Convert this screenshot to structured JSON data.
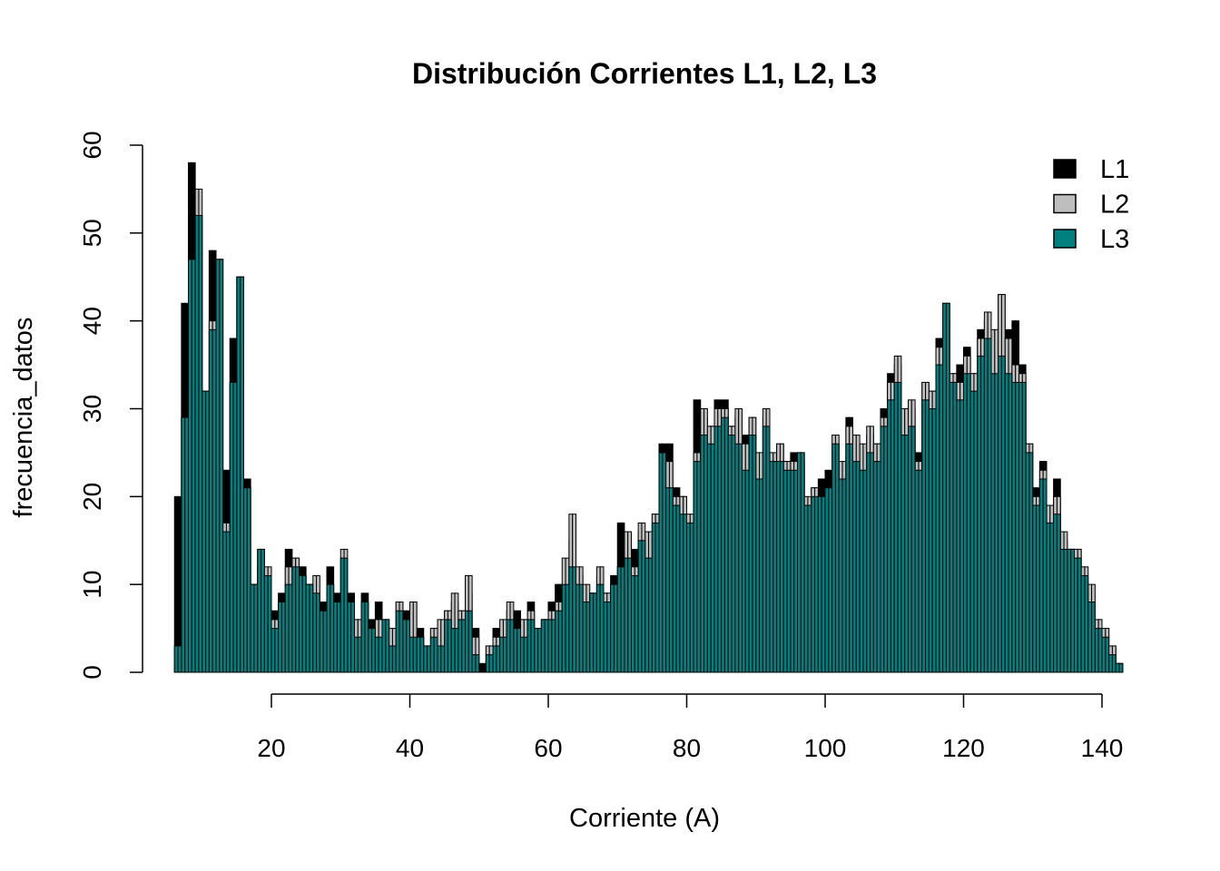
{
  "chart_data": {
    "type": "bar",
    "subtype": "overlaid-histogram",
    "title": "Distribución Corrientes L1, L2, L3",
    "xlabel": "Corriente (A)",
    "ylabel": "frecuencia_datos",
    "xlim": [
      6,
      143
    ],
    "ylim": [
      0,
      60
    ],
    "x_ticks": [
      "20",
      "40",
      "60",
      "80",
      "100",
      "120",
      "140"
    ],
    "x_tick_values": [
      20,
      40,
      60,
      80,
      100,
      120,
      140
    ],
    "y_ticks": [
      "0",
      "10",
      "20",
      "30",
      "40",
      "50",
      "60"
    ],
    "y_tick_values": [
      0,
      10,
      20,
      30,
      40,
      50,
      60
    ],
    "grid": false,
    "legend_position": "top-right",
    "bin_start": 6,
    "bin_width": 1,
    "series": [
      {
        "name": "L1",
        "color": "#000000",
        "values": [
          20,
          42,
          58,
          52,
          26,
          48,
          47,
          23,
          38,
          45,
          22,
          10,
          12,
          11,
          7,
          9,
          14,
          13,
          12,
          10,
          9,
          8,
          12,
          9,
          7,
          9,
          6,
          9,
          6,
          8,
          6,
          4,
          8,
          7,
          8,
          5,
          3,
          5,
          3,
          7,
          8,
          7,
          9,
          5,
          1,
          3,
          5,
          5,
          7,
          7,
          6,
          8,
          5,
          6,
          8,
          10,
          10,
          15,
          11,
          7,
          9,
          11,
          9,
          11,
          17,
          10,
          14,
          16,
          14,
          18,
          26,
          26,
          21,
          20,
          17,
          31,
          29,
          28,
          31,
          31,
          28,
          29,
          27,
          29,
          24,
          29,
          24,
          26,
          24,
          25,
          24,
          19,
          21,
          22,
          23,
          26,
          22,
          29,
          26,
          24,
          27,
          26,
          30,
          34,
          35,
          28,
          30,
          25,
          33,
          32,
          38,
          42,
          34,
          35,
          37,
          34,
          39,
          40,
          36,
          43,
          39,
          40,
          35,
          26,
          21,
          24,
          19,
          22,
          15,
          14,
          14,
          10,
          8,
          6,
          5,
          3,
          1
        ]
      },
      {
        "name": "L2",
        "color": "#bebebe",
        "values": [
          3,
          29,
          47,
          55,
          32,
          40,
          47,
          17,
          33,
          45,
          21,
          10,
          14,
          12,
          6,
          8,
          12,
          13,
          11,
          10,
          11,
          7,
          10,
          8,
          14,
          8,
          6,
          8,
          5,
          6,
          6,
          5,
          8,
          6,
          8,
          4,
          3,
          5,
          6,
          7,
          9,
          7,
          11,
          4,
          0,
          3,
          4,
          6,
          8,
          5,
          6,
          7,
          5,
          6,
          7,
          8,
          13,
          18,
          12,
          10,
          9,
          12,
          9,
          10,
          12,
          16,
          12,
          17,
          16,
          18,
          25,
          24,
          20,
          20,
          18,
          25,
          30,
          28,
          30,
          30,
          28,
          30,
          26,
          29,
          25,
          30,
          25,
          26,
          24,
          24,
          25,
          20,
          21,
          20,
          21,
          27,
          24,
          28,
          27,
          26,
          28,
          26,
          29,
          33,
          36,
          30,
          31,
          24,
          33,
          32,
          37,
          40,
          34,
          33,
          36,
          34,
          38,
          41,
          39,
          43,
          38,
          35,
          34,
          26,
          20,
          23,
          19,
          20,
          16,
          14,
          14,
          12,
          10,
          6,
          5,
          3,
          1
        ]
      },
      {
        "name": "L3",
        "color": "#008080",
        "values": [
          3,
          29,
          47,
          52,
          32,
          39,
          47,
          16,
          33,
          45,
          21,
          10,
          14,
          11,
          5,
          8,
          10,
          12,
          11,
          10,
          9,
          7,
          10,
          8,
          13,
          8,
          4,
          8,
          5,
          4,
          6,
          3,
          7,
          6,
          4,
          4,
          3,
          4,
          3,
          6,
          5,
          6,
          7,
          2,
          0,
          2,
          3,
          4,
          6,
          5,
          4,
          6,
          5,
          6,
          6,
          7,
          10,
          12,
          10,
          8,
          9,
          10,
          8,
          10,
          12,
          13,
          11,
          15,
          13,
          17,
          25,
          21,
          19,
          18,
          17,
          24,
          27,
          26,
          28,
          29,
          27,
          26,
          23,
          27,
          22,
          28,
          24,
          24,
          23,
          23,
          25,
          19,
          20,
          20,
          21,
          26,
          22,
          26,
          24,
          23,
          25,
          24,
          28,
          31,
          33,
          27,
          28,
          23,
          31,
          30,
          35,
          42,
          33,
          31,
          34,
          32,
          36,
          38,
          34,
          36,
          34,
          33,
          33,
          25,
          19,
          22,
          17,
          18,
          14,
          14,
          13,
          11,
          8,
          5,
          4,
          2,
          1
        ]
      }
    ]
  }
}
